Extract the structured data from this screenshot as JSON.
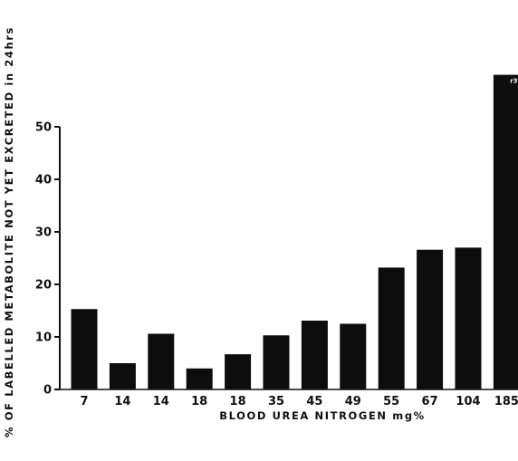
{
  "chart_data": {
    "type": "bar",
    "title": "",
    "xlabel": "BLOOD UREA NITROGEN mg%",
    "ylabel": "% OF LABELLED METABOLITE NOT YET EXCRETED in 24hrs",
    "categories": [
      "7",
      "14",
      "14",
      "18",
      "18",
      "35",
      "45",
      "49",
      "55",
      "67",
      "104",
      "185"
    ],
    "values": [
      15.3,
      5.0,
      10.6,
      4.0,
      6.7,
      10.3,
      13.1,
      12.5,
      23.2,
      26.6,
      27.0,
      59.9
    ],
    "ylim": [
      0,
      60
    ],
    "yticks": [
      0,
      10,
      20,
      30,
      40,
      50
    ],
    "grid": false,
    "bar_color": "#0d0d0d",
    "annotations": [
      {
        "category_index": 11,
        "text": "r3"
      }
    ]
  }
}
